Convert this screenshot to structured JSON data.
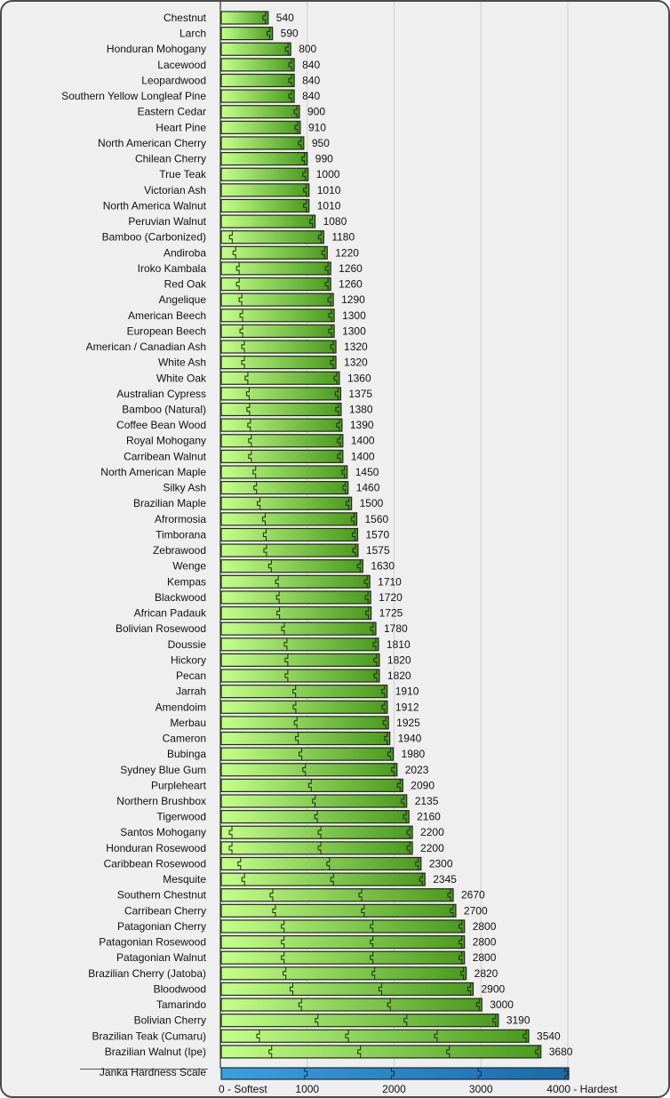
{
  "chart_data": {
    "type": "bar",
    "orientation": "horizontal",
    "categories": [
      "Chestnut",
      "Larch",
      "Honduran Mohogany",
      "Lacewood",
      "Leopardwood",
      "Southern Yellow Longleaf Pine",
      "Eastern Cedar",
      "Heart Pine",
      "North American Cherry",
      "Chilean Cherry",
      "True Teak",
      "Victorian Ash",
      "North America Walnut",
      "Peruvian Walnut",
      "Bamboo (Carbonized)",
      "Andiroba",
      "Iroko Kambala",
      "Red Oak",
      "Angelique",
      "American Beech",
      "European Beech",
      "American / Canadian Ash",
      "White Ash",
      "White Oak",
      "Australian Cypress",
      "Bamboo (Natural)",
      "Coffee Bean Wood",
      "Royal Mohogany",
      "Carribean Walnut",
      "North American Maple",
      "Silky Ash",
      "Brazilian Maple",
      "Afrormosia",
      "Timborana",
      "Zebrawood",
      "Wenge",
      "Kempas",
      "Blackwood",
      "African Padauk",
      "Bolivian Rosewood",
      "Doussie",
      "Hickory",
      "Pecan",
      "Jarrah",
      "Amendoim",
      "Merbau",
      "Cameron",
      "Bubinga",
      "Sydney Blue Gum",
      "Purpleheart",
      "Northern Brushbox",
      "Tigerwood",
      "Santos Mohogany",
      "Honduran Rosewood",
      "Caribbean Rosewood",
      "Mesquite",
      "Southern Chestnut",
      "Carribean Cherry",
      "Patagonian Cherry",
      "Patagonian Rosewood",
      "Patagonian Walnut",
      "Brazilian Cherry (Jatoba)",
      "Bloodwood",
      "Tamarindo",
      "Bolivian Cherry",
      "Brazilian Teak (Cumaru)",
      "Brazilian Walnut (Ipe)"
    ],
    "values": [
      540,
      590,
      800,
      840,
      840,
      840,
      900,
      910,
      950,
      990,
      1000,
      1010,
      1010,
      1080,
      1180,
      1220,
      1260,
      1260,
      1290,
      1300,
      1300,
      1320,
      1320,
      1360,
      1375,
      1380,
      1390,
      1400,
      1400,
      1450,
      1460,
      1500,
      1560,
      1570,
      1575,
      1630,
      1710,
      1720,
      1725,
      1780,
      1810,
      1820,
      1820,
      1910,
      1912,
      1925,
      1940,
      1980,
      2023,
      2090,
      2135,
      2160,
      2200,
      2200,
      2300,
      2345,
      2670,
      2700,
      2800,
      2800,
      2800,
      2820,
      2900,
      3000,
      3190,
      3540,
      3680
    ],
    "scale_label": "Janka Hardness Scale",
    "xtick_labels": [
      "0 - Softest",
      "1000",
      "2000",
      "3000",
      "4000 - Hardest"
    ],
    "xlim": [
      0,
      4000
    ],
    "grid": true,
    "colors": {
      "bar_light": "#c4ff8a",
      "bar_dark": "#4a9a1e",
      "scale_light": "#3aa0e0",
      "scale_dark": "#1a6aa8",
      "border": "#1e2a12"
    }
  }
}
